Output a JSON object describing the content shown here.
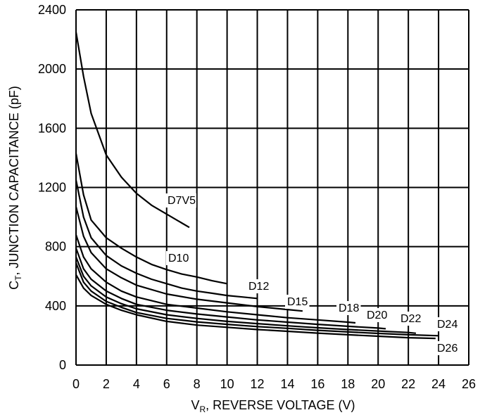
{
  "chart_data": {
    "type": "line",
    "xlabel_main": "V",
    "xlabel_sub": "R",
    "xlabel_rest": ", REVERSE VOLTAGE (V)",
    "ylabel_main": "C",
    "ylabel_sub": "T",
    "ylabel_rest": ", JUNCTION CAPACITANCE (pF)",
    "xlim": [
      0,
      26
    ],
    "ylim": [
      0,
      2400
    ],
    "x_ticks": [
      "0",
      "2",
      "4",
      "6",
      "8",
      "10",
      "12",
      "14",
      "16",
      "18",
      "20",
      "22",
      "24",
      "26"
    ],
    "y_ticks": [
      "0",
      "400",
      "800",
      "1200",
      "1600",
      "2000",
      "2400"
    ],
    "grid": true,
    "series": [
      {
        "name": "D7V5",
        "x": [
          0,
          0.5,
          1,
          2,
          3,
          4,
          5,
          6,
          7,
          7.5
        ],
        "y": [
          2250,
          1950,
          1700,
          1420,
          1270,
          1160,
          1080,
          1020,
          960,
          930
        ]
      },
      {
        "name": "D10",
        "x": [
          0,
          0.5,
          1,
          2,
          3,
          4,
          5,
          6,
          7,
          8,
          9,
          10
        ],
        "y": [
          1430,
          1150,
          980,
          860,
          790,
          730,
          680,
          645,
          615,
          595,
          570,
          550
        ]
      },
      {
        "name": "D12",
        "x": [
          0,
          0.5,
          1,
          2,
          3,
          4,
          5,
          6,
          7,
          8,
          9,
          10,
          11,
          12
        ],
        "y": [
          1250,
          1000,
          860,
          740,
          670,
          620,
          580,
          550,
          520,
          500,
          485,
          470,
          460,
          450
        ]
      },
      {
        "name": "D15",
        "x": [
          0,
          0.5,
          1,
          2,
          3,
          4,
          6,
          8,
          10,
          12,
          14,
          15
        ],
        "y": [
          1070,
          870,
          760,
          650,
          590,
          540,
          480,
          445,
          420,
          395,
          375,
          365
        ]
      },
      {
        "name": "D18",
        "x": [
          0,
          0.5,
          1,
          2,
          3,
          4,
          6,
          8,
          10,
          12,
          14,
          16,
          18,
          18.5
        ],
        "y": [
          880,
          730,
          650,
          560,
          500,
          460,
          410,
          385,
          360,
          340,
          320,
          305,
          290,
          285
        ]
      },
      {
        "name": "D20",
        "x": [
          0,
          0.5,
          1,
          2,
          3,
          4,
          6,
          8,
          10,
          12,
          14,
          16,
          18,
          20,
          20.5
        ],
        "y": [
          790,
          650,
          580,
          500,
          450,
          410,
          370,
          345,
          325,
          305,
          290,
          275,
          262,
          250,
          245
        ]
      },
      {
        "name": "D22",
        "x": [
          0,
          0.5,
          1,
          2,
          3,
          4,
          6,
          8,
          10,
          12,
          14,
          16,
          18,
          20,
          22,
          22.5
        ],
        "y": [
          730,
          600,
          535,
          460,
          415,
          380,
          340,
          315,
          295,
          280,
          265,
          252,
          240,
          230,
          220,
          215
        ]
      },
      {
        "name": "D24",
        "x": [
          0,
          0.5,
          1,
          2,
          3,
          4,
          6,
          8,
          10,
          12,
          14,
          16,
          18,
          20,
          22,
          24
        ],
        "y": [
          690,
          560,
          500,
          430,
          390,
          355,
          315,
          292,
          275,
          260,
          248,
          235,
          224,
          214,
          205,
          198
        ]
      },
      {
        "name": "D26",
        "x": [
          0,
          0.5,
          1,
          2,
          3,
          4,
          6,
          8,
          10,
          12,
          14,
          16,
          18,
          20,
          22,
          23.8
        ],
        "y": [
          610,
          520,
          470,
          410,
          370,
          340,
          295,
          270,
          255,
          240,
          228,
          216,
          205,
          195,
          185,
          180
        ]
      }
    ]
  }
}
